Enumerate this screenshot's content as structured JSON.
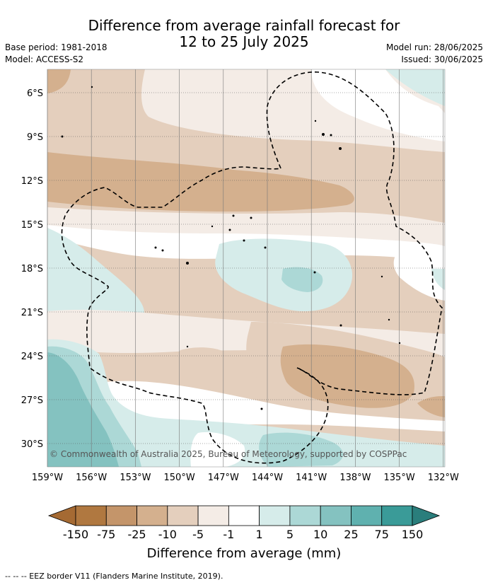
{
  "title": {
    "line1": "Difference from average rainfall forecast for",
    "line2": "12 to 25 July 2025"
  },
  "meta": {
    "base_period": "Base period: 1981-2018",
    "model": "Model: ACCESS-S2",
    "model_run": "Model run: 28/06/2025",
    "issued": "Issued: 30/06/2025"
  },
  "map": {
    "lat_labels": [
      "6°S",
      "9°S",
      "12°S",
      "15°S",
      "18°S",
      "21°S",
      "24°S",
      "27°S",
      "30°S"
    ],
    "lon_labels": [
      "159°W",
      "156°W",
      "153°W",
      "150°W",
      "147°W",
      "144°W",
      "141°W",
      "138°W",
      "135°W",
      "132°W"
    ],
    "copyright": "© Commonwealth of Australia 2025, Bureau of Meteorology, supported by COSPPac"
  },
  "colorbar": {
    "labels": [
      "-150",
      "-75",
      "-25",
      "-10",
      "-5",
      "-1",
      "1",
      "5",
      "10",
      "25",
      "75",
      "150"
    ],
    "colors": [
      "#a56a33",
      "#b07840",
      "#c4956a",
      "#d4b08e",
      "#e4cfbd",
      "#f4ece6",
      "#ffffff",
      "#d6ecea",
      "#acd8d6",
      "#84c2c0",
      "#5fb1af",
      "#3a9b98",
      "#2a7e7c"
    ],
    "title": "Difference from average (mm)"
  },
  "footer": {
    "legend": "--  --  -- EEZ border V11 (Flanders Marine Institute, 2019)."
  }
}
